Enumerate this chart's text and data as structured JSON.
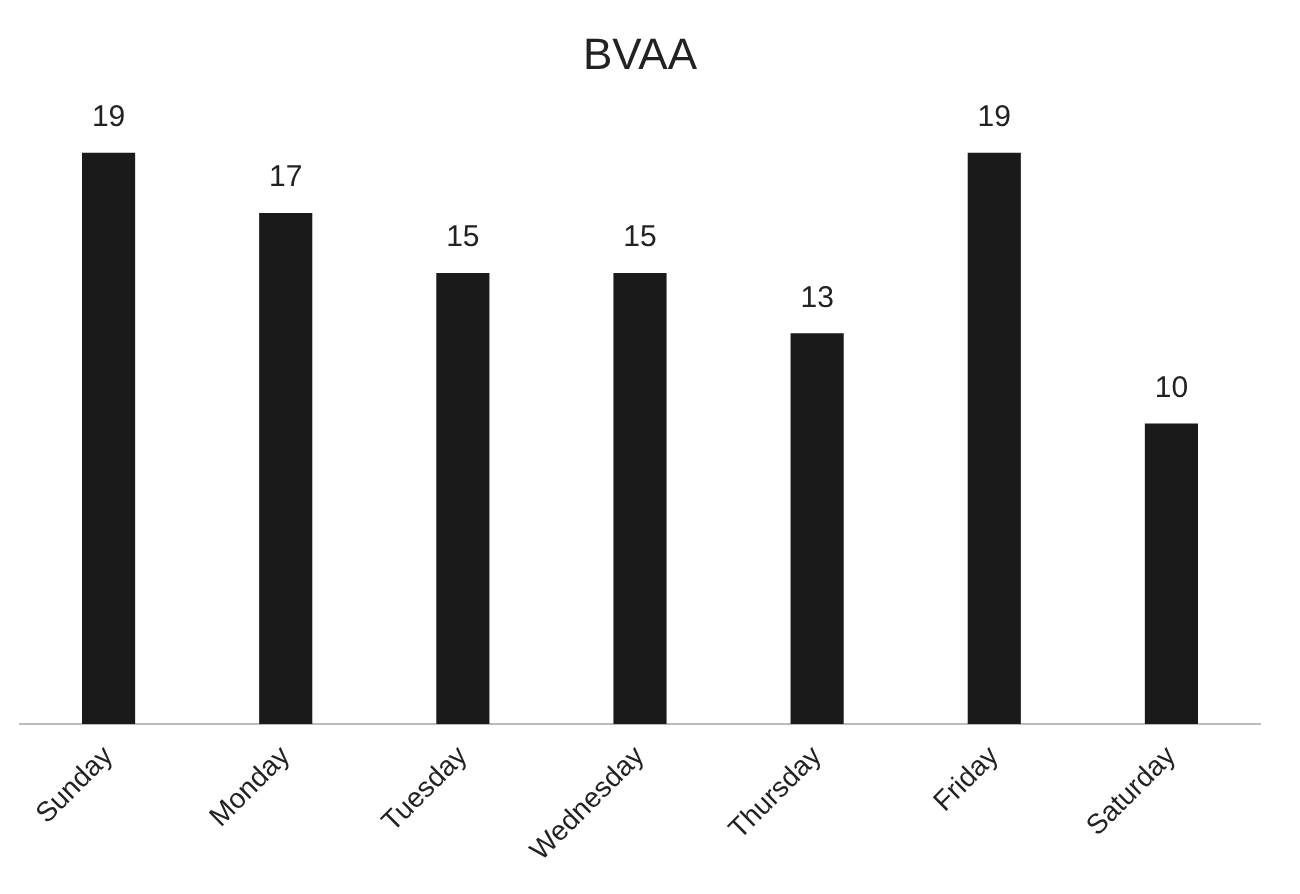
{
  "chart_data": {
    "type": "bar",
    "title": "BVAA",
    "categories": [
      "Sunday",
      "Monday",
      "Tuesday",
      "Wednesday",
      "Thursday",
      "Friday",
      "Saturday"
    ],
    "values": [
      19,
      17,
      15,
      15,
      13,
      19,
      10
    ],
    "color": "#1a1a1a",
    "data_labels": true,
    "grid": false,
    "legend": false
  }
}
